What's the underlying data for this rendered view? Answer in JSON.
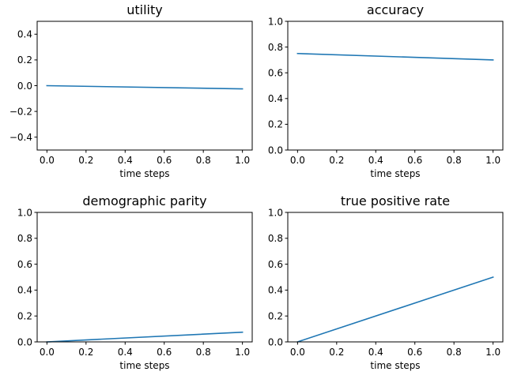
{
  "chart_data": [
    {
      "type": "line",
      "title": "utility",
      "xlabel": "time steps",
      "ylabel": "",
      "xlim": [
        -0.05,
        1.05
      ],
      "ylim": [
        -0.5,
        0.5
      ],
      "xticks": [
        0.0,
        0.2,
        0.4,
        0.6,
        0.8,
        1.0
      ],
      "xtick_labels": [
        "0.0",
        "0.2",
        "0.4",
        "0.6",
        "0.8",
        "1.0"
      ],
      "yticks": [
        -0.4,
        -0.2,
        0.0,
        0.2,
        0.4
      ],
      "ytick_labels": [
        "−0.4",
        "−0.2",
        "0.0",
        "0.2",
        "0.4"
      ],
      "grid": false,
      "series": [
        {
          "x": [
            0.0,
            1.0
          ],
          "values": [
            0.0,
            -0.025
          ],
          "color": "#1f77b4"
        }
      ]
    },
    {
      "type": "line",
      "title": "accuracy",
      "xlabel": "time steps",
      "ylabel": "",
      "xlim": [
        -0.05,
        1.05
      ],
      "ylim": [
        0.0,
        1.0
      ],
      "xticks": [
        0.0,
        0.2,
        0.4,
        0.6,
        0.8,
        1.0
      ],
      "xtick_labels": [
        "0.0",
        "0.2",
        "0.4",
        "0.6",
        "0.8",
        "1.0"
      ],
      "yticks": [
        0.0,
        0.2,
        0.4,
        0.6,
        0.8,
        1.0
      ],
      "ytick_labels": [
        "0.0",
        "0.2",
        "0.4",
        "0.6",
        "0.8",
        "1.0"
      ],
      "grid": false,
      "series": [
        {
          "x": [
            0.0,
            1.0
          ],
          "values": [
            0.75,
            0.7
          ],
          "color": "#1f77b4"
        }
      ]
    },
    {
      "type": "line",
      "title": "demographic parity",
      "xlabel": "time steps",
      "ylabel": "",
      "xlim": [
        -0.05,
        1.05
      ],
      "ylim": [
        0.0,
        1.0
      ],
      "xticks": [
        0.0,
        0.2,
        0.4,
        0.6,
        0.8,
        1.0
      ],
      "xtick_labels": [
        "0.0",
        "0.2",
        "0.4",
        "0.6",
        "0.8",
        "1.0"
      ],
      "yticks": [
        0.0,
        0.2,
        0.4,
        0.6,
        0.8,
        1.0
      ],
      "ytick_labels": [
        "0.0",
        "0.2",
        "0.4",
        "0.6",
        "0.8",
        "1.0"
      ],
      "grid": false,
      "series": [
        {
          "x": [
            0.0,
            1.0
          ],
          "values": [
            0.0,
            0.075
          ],
          "color": "#1f77b4"
        }
      ]
    },
    {
      "type": "line",
      "title": "true positive rate",
      "xlabel": "time steps",
      "ylabel": "",
      "xlim": [
        -0.05,
        1.05
      ],
      "ylim": [
        0.0,
        1.0
      ],
      "xticks": [
        0.0,
        0.2,
        0.4,
        0.6,
        0.8,
        1.0
      ],
      "xtick_labels": [
        "0.0",
        "0.2",
        "0.4",
        "0.6",
        "0.8",
        "1.0"
      ],
      "yticks": [
        0.0,
        0.2,
        0.4,
        0.6,
        0.8,
        1.0
      ],
      "ytick_labels": [
        "0.0",
        "0.2",
        "0.4",
        "0.6",
        "0.8",
        "1.0"
      ],
      "grid": false,
      "series": [
        {
          "x": [
            0.0,
            1.0
          ],
          "values": [
            0.0,
            0.5
          ],
          "color": "#1f77b4"
        }
      ]
    }
  ]
}
